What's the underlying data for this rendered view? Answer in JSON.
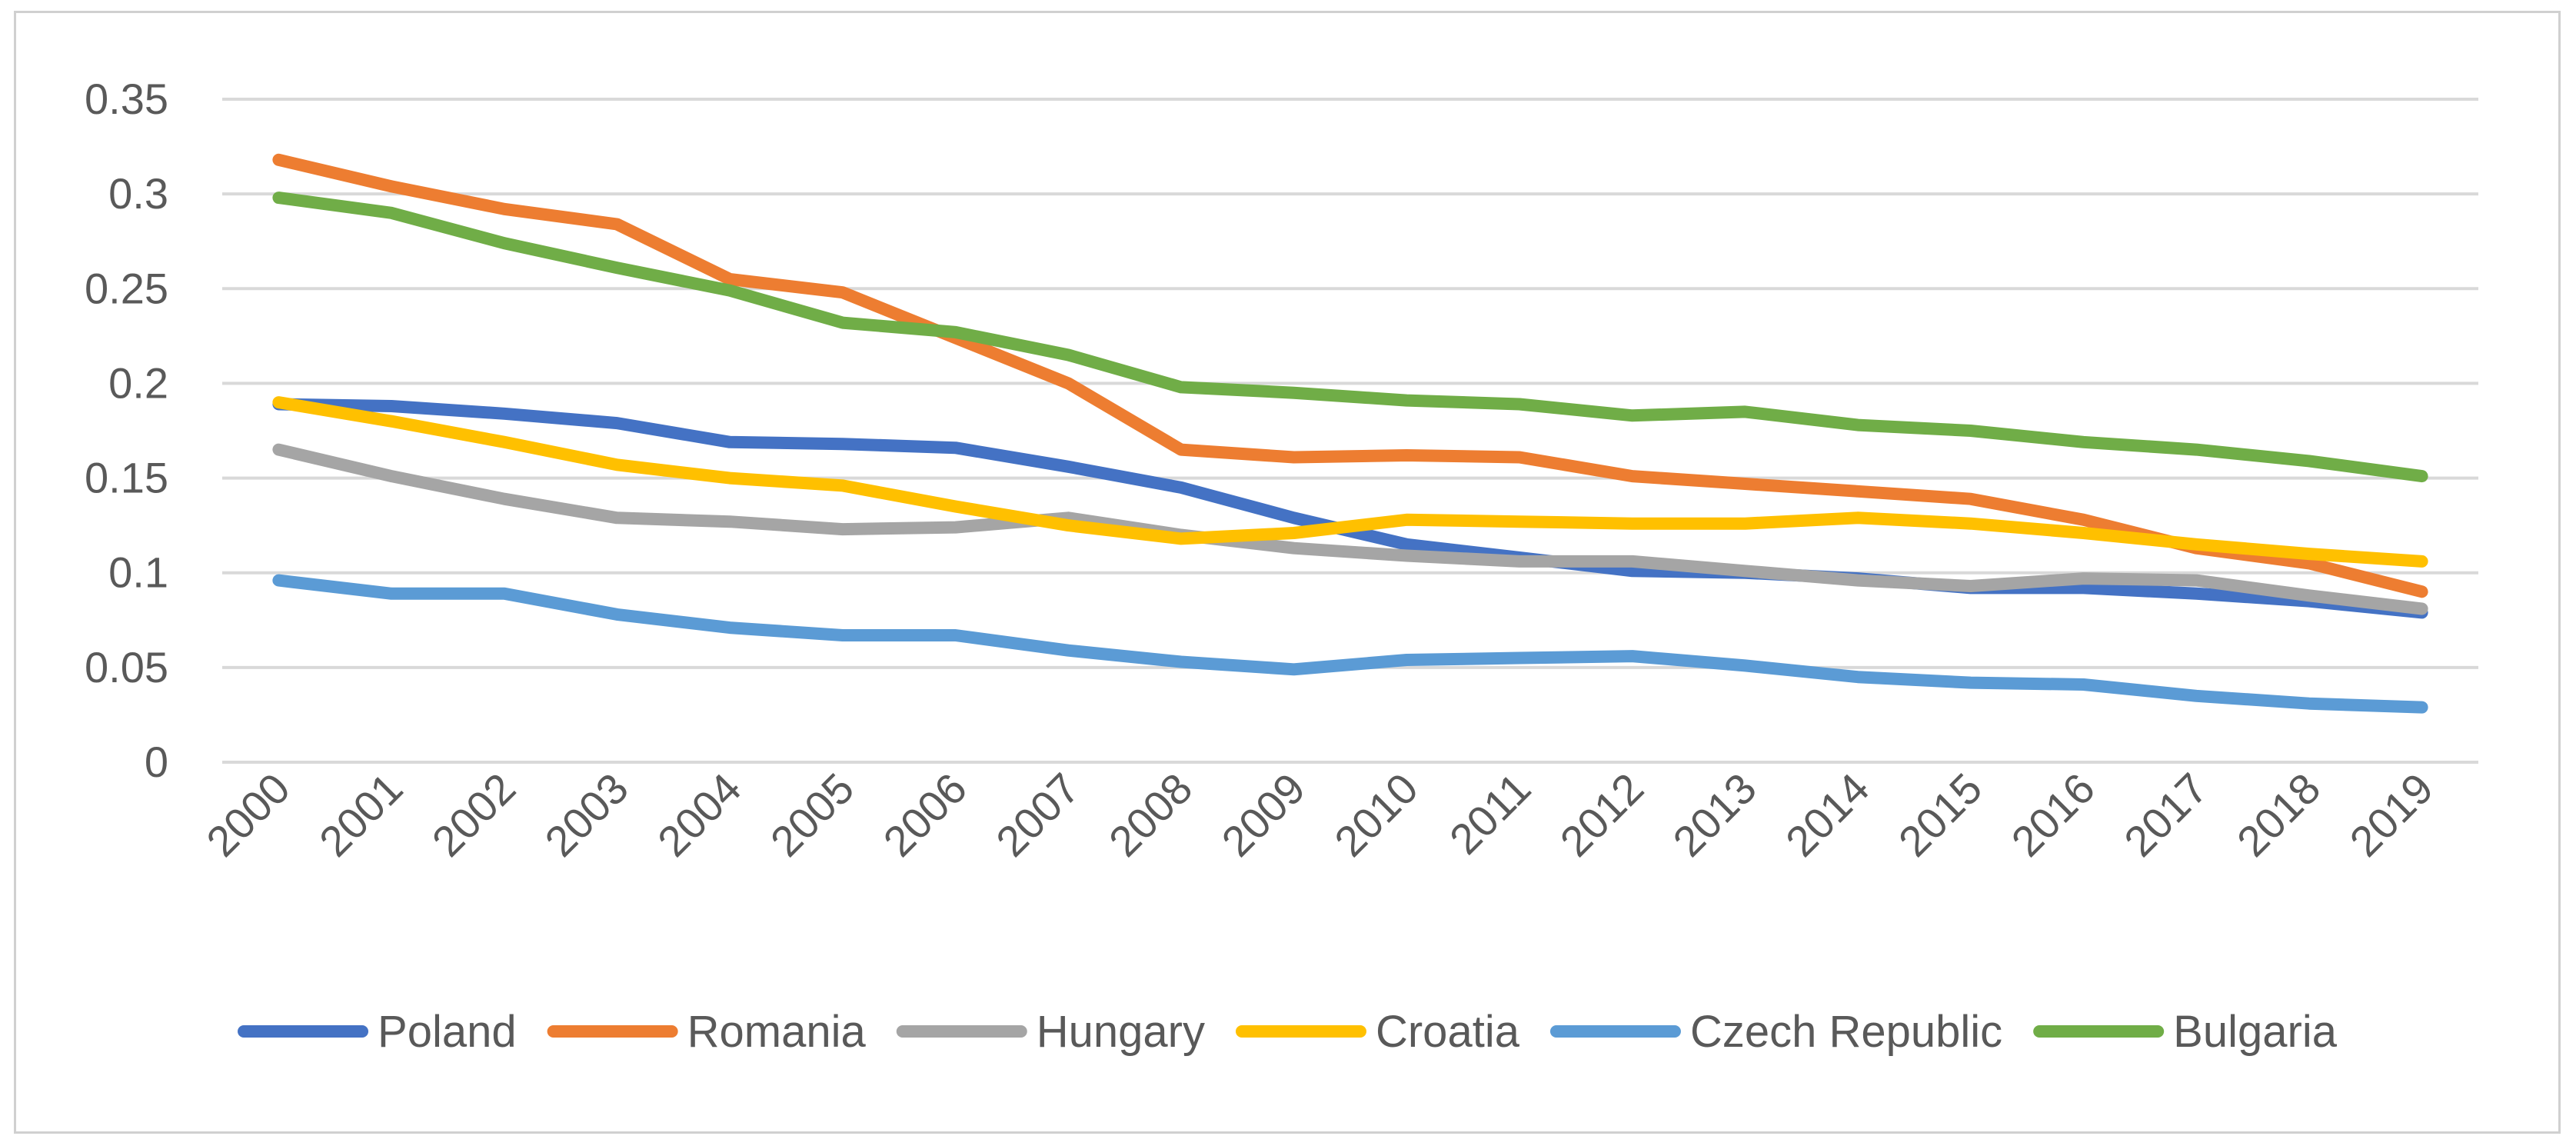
{
  "chart_data": {
    "type": "line",
    "title": "",
    "xlabel": "",
    "ylabel": "",
    "ylim": [
      0,
      0.35
    ],
    "yticks": [
      "0",
      "0.05",
      "0.1",
      "0.15",
      "0.2",
      "0.25",
      "0.3",
      "0.35"
    ],
    "ytick_values": [
      0,
      0.05,
      0.1,
      0.15,
      0.2,
      0.25,
      0.3,
      0.35
    ],
    "grid": true,
    "legend_position": "bottom",
    "categories": [
      "2000",
      "2001",
      "2002",
      "2003",
      "2004",
      "2005",
      "2006",
      "2007",
      "2008",
      "2009",
      "2010",
      "2011",
      "2012",
      "2013",
      "2014",
      "2015",
      "2016",
      "2017",
      "2018",
      "2019"
    ],
    "series": [
      {
        "name": "Poland",
        "color": "#4472C4",
        "values": [
          0.189,
          0.188,
          0.184,
          0.179,
          0.169,
          0.168,
          0.166,
          0.156,
          0.145,
          0.129,
          0.115,
          0.108,
          0.101,
          0.1,
          0.097,
          0.092,
          0.092,
          0.089,
          0.085,
          0.079
        ]
      },
      {
        "name": "Romania",
        "color": "#ED7D31",
        "values": [
          0.318,
          0.304,
          0.292,
          0.284,
          0.255,
          0.248,
          0.224,
          0.2,
          0.165,
          0.161,
          0.162,
          0.161,
          0.151,
          0.147,
          0.143,
          0.139,
          0.128,
          0.113,
          0.105,
          0.09
        ]
      },
      {
        "name": "Hungary",
        "color": "#A5A5A5",
        "values": [
          0.165,
          0.151,
          0.139,
          0.129,
          0.127,
          0.123,
          0.124,
          0.129,
          0.12,
          0.113,
          0.109,
          0.106,
          0.106,
          0.101,
          0.096,
          0.093,
          0.097,
          0.096,
          0.088,
          0.081
        ]
      },
      {
        "name": "Croatia",
        "color": "#FFC000",
        "values": [
          0.19,
          0.18,
          0.169,
          0.157,
          0.15,
          0.146,
          0.135,
          0.125,
          0.118,
          0.121,
          0.128,
          0.127,
          0.126,
          0.126,
          0.129,
          0.126,
          0.121,
          0.115,
          0.11,
          0.106
        ]
      },
      {
        "name": "Czech Republic",
        "color": "#5B9BD5",
        "values": [
          0.096,
          0.089,
          0.089,
          0.078,
          0.071,
          0.067,
          0.067,
          0.059,
          0.053,
          0.049,
          0.054,
          0.055,
          0.056,
          0.051,
          0.045,
          0.042,
          0.041,
          0.035,
          0.031,
          0.029
        ]
      },
      {
        "name": "Bulgaria",
        "color": "#70AD47",
        "values": [
          0.298,
          0.29,
          0.274,
          0.261,
          0.249,
          0.232,
          0.227,
          0.215,
          0.198,
          0.195,
          0.191,
          0.189,
          0.183,
          0.185,
          0.178,
          0.175,
          0.169,
          0.165,
          0.159,
          0.151
        ]
      }
    ]
  }
}
